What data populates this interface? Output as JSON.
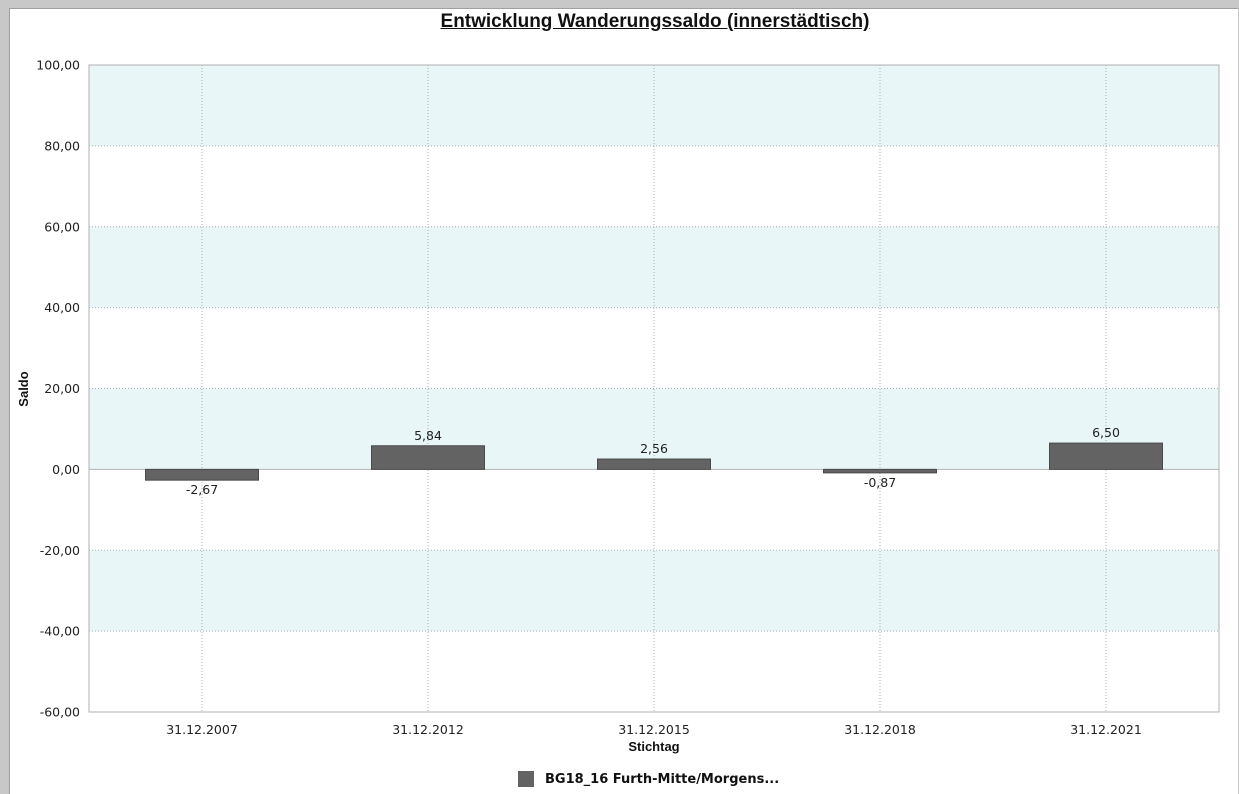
{
  "chart_data": {
    "type": "bar",
    "title": "Entwicklung Wanderungssaldo (innerstädtisch)",
    "xlabel": "Stichtag",
    "ylabel": "Saldo",
    "categories": [
      "31.12.2007",
      "31.12.2012",
      "31.12.2015",
      "31.12.2018",
      "31.12.2021"
    ],
    "series": [
      {
        "name": "BG18_16 Furth-Mitte/Morgens...",
        "values": [
          -2.67,
          5.84,
          2.56,
          -0.87,
          6.5
        ],
        "labels": [
          "-2,67",
          "5,84",
          "2,56",
          "-0,87",
          "6,50"
        ],
        "color": "#636363"
      }
    ],
    "ylim": [
      -60,
      100
    ],
    "yticks": [
      100,
      80,
      60,
      40,
      20,
      0,
      -20,
      -40,
      -60
    ],
    "ytick_labels": [
      "100,00",
      "80,00",
      "60,00",
      "40,00",
      "20,00",
      "0,00",
      "-20,00",
      "-40,00",
      "-60,00"
    ],
    "grid": true,
    "band_color": "#e8f6f7",
    "legend_position": "bottom"
  }
}
